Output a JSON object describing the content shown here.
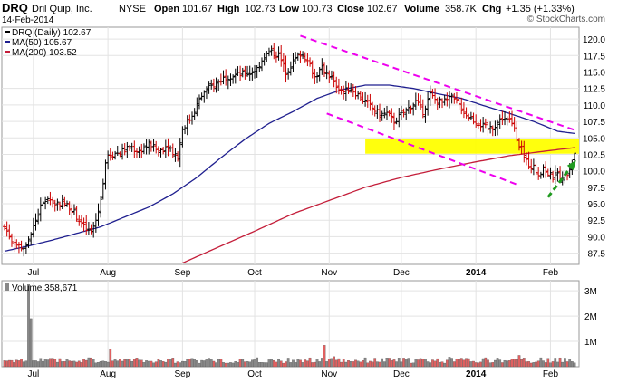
{
  "header": {
    "ticker": "DRQ",
    "company": "Dril Quip, Inc.",
    "exchange": "NYSE",
    "date": "14-Feb-2014",
    "watermark": "© StockCharts.com",
    "quote": [
      {
        "label": "Open",
        "value": "101.67"
      },
      {
        "label": "High",
        "value": "102.73"
      },
      {
        "label": "Low",
        "value": "100.73"
      },
      {
        "label": "Close",
        "value": "102.67"
      },
      {
        "label": "Volume",
        "value": "358.7K"
      },
      {
        "label": "Chg",
        "value": "+1.35 (+1.33%)"
      }
    ]
  },
  "legend": {
    "price": "DRQ (Daily) 102.67",
    "ma50": "MA(50) 105.67",
    "ma200": "MA(200) 103.52",
    "volume": "Volume 358,671"
  },
  "colors": {
    "price_up": "#000000",
    "price_down": "#cc0000",
    "ma50": "#1f1f8f",
    "ma200": "#c41e3a",
    "trend": "#ee00ee",
    "band": "#ffff00",
    "arrow": "#1f9a1f",
    "vol_up": "#888888",
    "vol_down": "#e06060"
  },
  "chart_data": {
    "type": "line",
    "x_axis": {
      "labels": [
        "Jul",
        "Aug",
        "Sep",
        "Oct",
        "Nov",
        "Dec",
        "2014",
        "Feb"
      ],
      "label_days": [
        12,
        43,
        74,
        104,
        135,
        165,
        196,
        227
      ]
    },
    "price_axis": {
      "ticks": [
        "87.5",
        "90.0",
        "92.5",
        "95.0",
        "97.5",
        "100.0",
        "102.5",
        "105.0",
        "107.5",
        "110.0",
        "112.5",
        "115.0",
        "117.5",
        "120.0"
      ],
      "ylim": [
        85.8,
        121.8
      ]
    },
    "volume_axis": {
      "ticks": [
        "1M",
        "2M",
        "3M"
      ],
      "ylim": [
        0,
        3400000
      ]
    },
    "close_anchors": [
      [
        0,
        91.5
      ],
      [
        3,
        89.5
      ],
      [
        6,
        88.6
      ],
      [
        9,
        88.3
      ],
      [
        12,
        91.5
      ],
      [
        15,
        94.5
      ],
      [
        18,
        96.0
      ],
      [
        21,
        95.0
      ],
      [
        24,
        95.3
      ],
      [
        28,
        94.2
      ],
      [
        31,
        92.5
      ],
      [
        34,
        91.0
      ],
      [
        36,
        90.6
      ],
      [
        38,
        92.5
      ],
      [
        40,
        95.5
      ],
      [
        42,
        101.5
      ],
      [
        44,
        102.5
      ],
      [
        48,
        102.8
      ],
      [
        52,
        103.5
      ],
      [
        56,
        103.0
      ],
      [
        60,
        104.0
      ],
      [
        64,
        103.0
      ],
      [
        68,
        103.8
      ],
      [
        71,
        102.5
      ],
      [
        72,
        102.0
      ],
      [
        74,
        106.5
      ],
      [
        77,
        107.8
      ],
      [
        80,
        110.0
      ],
      [
        83,
        112.0
      ],
      [
        86,
        112.8
      ],
      [
        89,
        113.6
      ],
      [
        92,
        114.3
      ],
      [
        95,
        114.5
      ],
      [
        98,
        114.6
      ],
      [
        102,
        114.8
      ],
      [
        105,
        115.5
      ],
      [
        108,
        117.5
      ],
      [
        111,
        118.0
      ],
      [
        114,
        117.5
      ],
      [
        117,
        115.0
      ],
      [
        120,
        116.5
      ],
      [
        123,
        117.8
      ],
      [
        126,
        117.0
      ],
      [
        129,
        114.2
      ],
      [
        132,
        115.5
      ],
      [
        135,
        114.5
      ],
      [
        138,
        113.0
      ],
      [
        141,
        112.0
      ],
      [
        144,
        112.5
      ],
      [
        147,
        111.5
      ],
      [
        150,
        110.5
      ],
      [
        153,
        109.5
      ],
      [
        156,
        108.5
      ],
      [
        159,
        108.7
      ],
      [
        162,
        107.5
      ],
      [
        165,
        108.5
      ],
      [
        168,
        109.5
      ],
      [
        171,
        110.5
      ],
      [
        174,
        109.0
      ],
      [
        177,
        111.5
      ],
      [
        180,
        110.5
      ],
      [
        183,
        110.5
      ],
      [
        186,
        111.0
      ],
      [
        189,
        110.0
      ],
      [
        192,
        108.5
      ],
      [
        195,
        107.7
      ],
      [
        198,
        107.0
      ],
      [
        201,
        106.3
      ],
      [
        204,
        107.0
      ],
      [
        207,
        108.0
      ],
      [
        210,
        107.5
      ],
      [
        212,
        106.5
      ],
      [
        214,
        104.0
      ],
      [
        216,
        102.0
      ],
      [
        218,
        101.0
      ],
      [
        220,
        100.5
      ],
      [
        222,
        99.5
      ],
      [
        224,
        100.5
      ],
      [
        226,
        99.5
      ],
      [
        228,
        99.0
      ],
      [
        230,
        99.5
      ],
      [
        232,
        98.5
      ],
      [
        234,
        99.8
      ],
      [
        236,
        101.3
      ],
      [
        237,
        102.67
      ]
    ],
    "ma50_anchors": [
      [
        0,
        87.8
      ],
      [
        10,
        88.6
      ],
      [
        20,
        89.5
      ],
      [
        30,
        90.5
      ],
      [
        40,
        91.5
      ],
      [
        50,
        93.0
      ],
      [
        60,
        94.5
      ],
      [
        70,
        96.5
      ],
      [
        80,
        99.0
      ],
      [
        90,
        102.0
      ],
      [
        100,
        104.8
      ],
      [
        110,
        107.2
      ],
      [
        120,
        109.0
      ],
      [
        130,
        111.0
      ],
      [
        140,
        112.3
      ],
      [
        150,
        113.0
      ],
      [
        160,
        113.0
      ],
      [
        170,
        112.5
      ],
      [
        180,
        111.7
      ],
      [
        190,
        111.0
      ],
      [
        200,
        109.8
      ],
      [
        210,
        108.7
      ],
      [
        220,
        107.5
      ],
      [
        230,
        106.0
      ],
      [
        237,
        105.67
      ]
    ],
    "ma200_anchors": [
      [
        74,
        86.0
      ],
      [
        90,
        88.6
      ],
      [
        105,
        91.0
      ],
      [
        120,
        93.5
      ],
      [
        135,
        95.5
      ],
      [
        150,
        97.5
      ],
      [
        165,
        99.0
      ],
      [
        180,
        100.2
      ],
      [
        195,
        101.3
      ],
      [
        210,
        102.3
      ],
      [
        225,
        103.0
      ],
      [
        237,
        103.52
      ]
    ],
    "volume_spikes": [
      [
        10,
        3250000
      ],
      [
        11,
        1900000
      ],
      [
        44,
        700000
      ],
      [
        133,
        850000
      ],
      [
        137,
        400000
      ],
      [
        185,
        380000
      ],
      [
        214,
        450000
      ]
    ],
    "annotations": {
      "support_band": [
        102.6,
        104.8
      ],
      "upper_trendline": [
        [
          123,
          120.5
        ],
        [
          237,
          106.2
        ]
      ],
      "lower_trendline": [
        [
          134,
          108.7
        ],
        [
          214,
          97.8
        ]
      ],
      "arrow": [
        [
          226,
          96.0
        ],
        [
          237,
          101.3
        ]
      ]
    }
  }
}
